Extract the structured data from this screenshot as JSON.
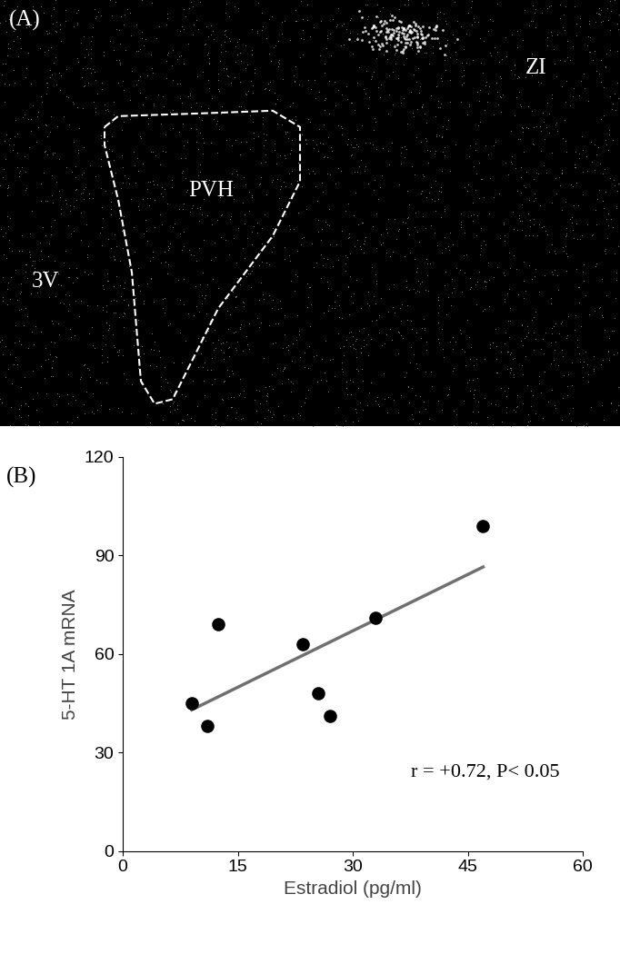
{
  "panel_a": {
    "label": "(A)",
    "regions": [
      "PVH",
      "ZI",
      "3V"
    ]
  },
  "chart_data": {
    "type": "scatter",
    "panel_label": "(B)",
    "x_label": "Estradiol (pg/ml)",
    "y_label": "5-HT 1A mRNA",
    "x": [
      9,
      11,
      12.5,
      23.5,
      25.5,
      27,
      33,
      47
    ],
    "values": [
      45,
      38,
      69,
      63,
      48,
      41,
      71,
      99
    ],
    "color": "#000000",
    "marker": "circle",
    "trend_line": {
      "x": [
        9,
        47
      ],
      "y": [
        43,
        86.5
      ],
      "color": "#707070"
    },
    "annotation": "r = +0.72, P< 0.05",
    "xlim": [
      0,
      60
    ],
    "xticks": [
      0,
      15,
      30,
      45,
      60
    ],
    "ylim": [
      0,
      120
    ],
    "yticks": [
      0,
      30,
      60,
      90,
      120
    ],
    "grid": false
  }
}
